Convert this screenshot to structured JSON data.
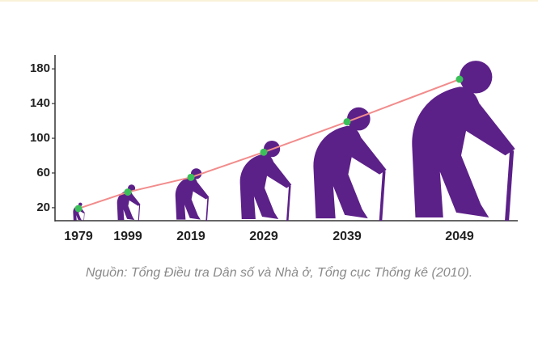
{
  "chart_data": {
    "type": "pictograph",
    "categories": [
      "1979",
      "1999",
      "2019",
      "2029",
      "2039",
      "2049"
    ],
    "values": [
      19,
      38,
      55,
      84,
      119,
      168
    ],
    "color": "#5c2089",
    "line_color": "#f28c8c",
    "marker_color": "#3cc05a",
    "ylim": [
      5,
      196
    ],
    "yticks": [
      20,
      60,
      100,
      140,
      180
    ],
    "source": "Nguồn: Tổng Điều tra Dân số và Nhà ở, Tổng cục Thống kê (2010)."
  }
}
